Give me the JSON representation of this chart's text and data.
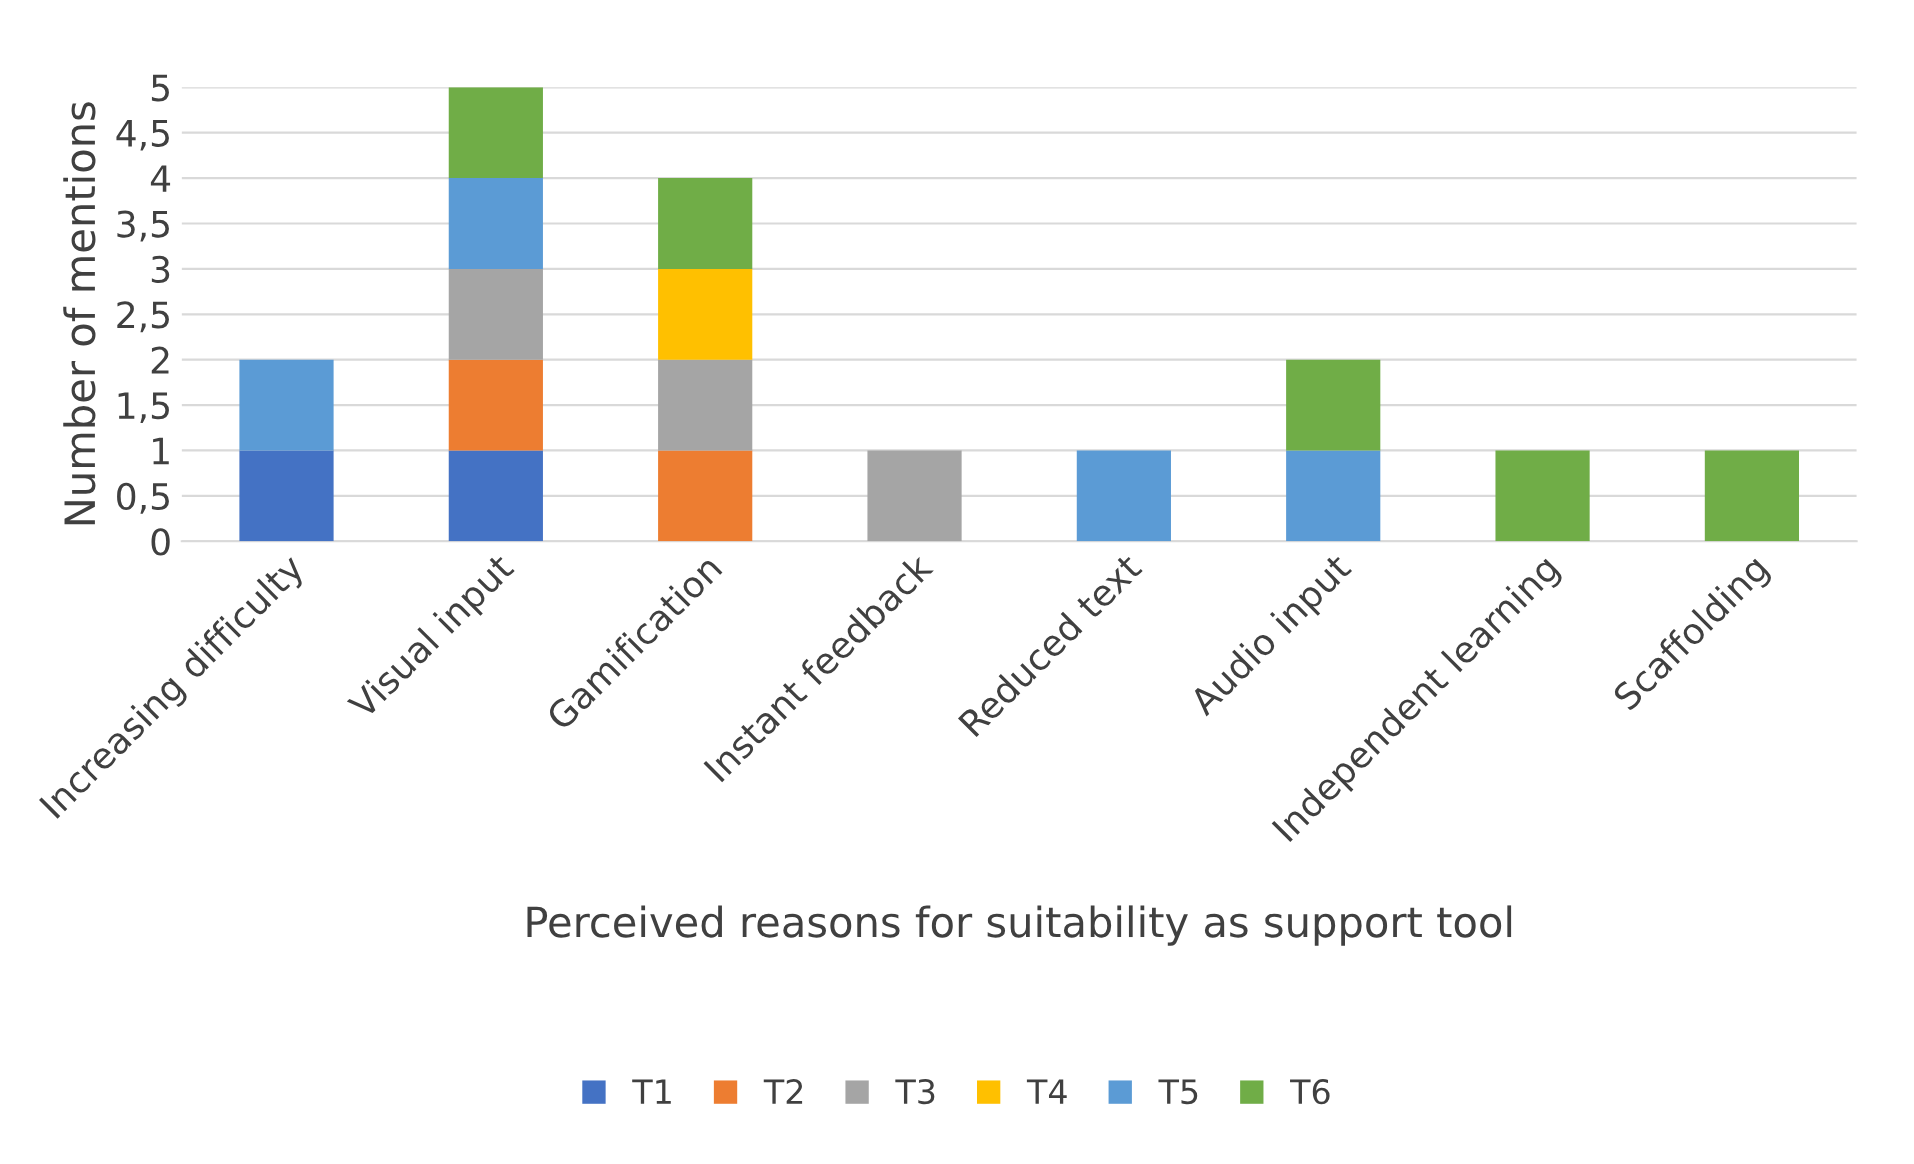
{
  "chart_data": {
    "type": "bar",
    "stacked": true,
    "xlabel": "Perceived reasons for suitability as support tool",
    "ylabel": "Number of mentions",
    "categories": [
      "Increasing difficulty",
      "Visual input",
      "Gamification",
      "Instant feedback",
      "Reduced text",
      "Audio input",
      "Independent learning",
      "Scaffolding"
    ],
    "series": [
      {
        "name": "T1",
        "color": "#4472c4",
        "values": [
          1,
          1,
          0,
          0,
          0,
          0,
          0,
          0
        ]
      },
      {
        "name": "T2",
        "color": "#ed7d31",
        "values": [
          0,
          1,
          1,
          0,
          0,
          0,
          0,
          0
        ]
      },
      {
        "name": "T3",
        "color": "#a5a5a5",
        "values": [
          0,
          1,
          1,
          1,
          0,
          0,
          0,
          0
        ]
      },
      {
        "name": "T4",
        "color": "#ffc000",
        "values": [
          0,
          0,
          1,
          0,
          0,
          0,
          0,
          0
        ]
      },
      {
        "name": "T5",
        "color": "#5b9bd5",
        "values": [
          1,
          1,
          0,
          0,
          1,
          1,
          0,
          0
        ]
      },
      {
        "name": "T6",
        "color": "#70ad47",
        "values": [
          0,
          1,
          1,
          0,
          0,
          1,
          1,
          1
        ]
      }
    ],
    "ylim": [
      0,
      5
    ],
    "yticks": [
      0,
      {
        "value": 0.5,
        "label": "0,5"
      },
      1,
      {
        "value": 1.5,
        "label": "1,5"
      },
      2,
      {
        "value": 2.5,
        "label": "2,5"
      },
      3,
      {
        "value": 3.5,
        "label": "3,5"
      },
      4,
      {
        "value": 4.5,
        "label": "4,5"
      },
      5
    ],
    "grid": "y",
    "legend": "bottom"
  }
}
